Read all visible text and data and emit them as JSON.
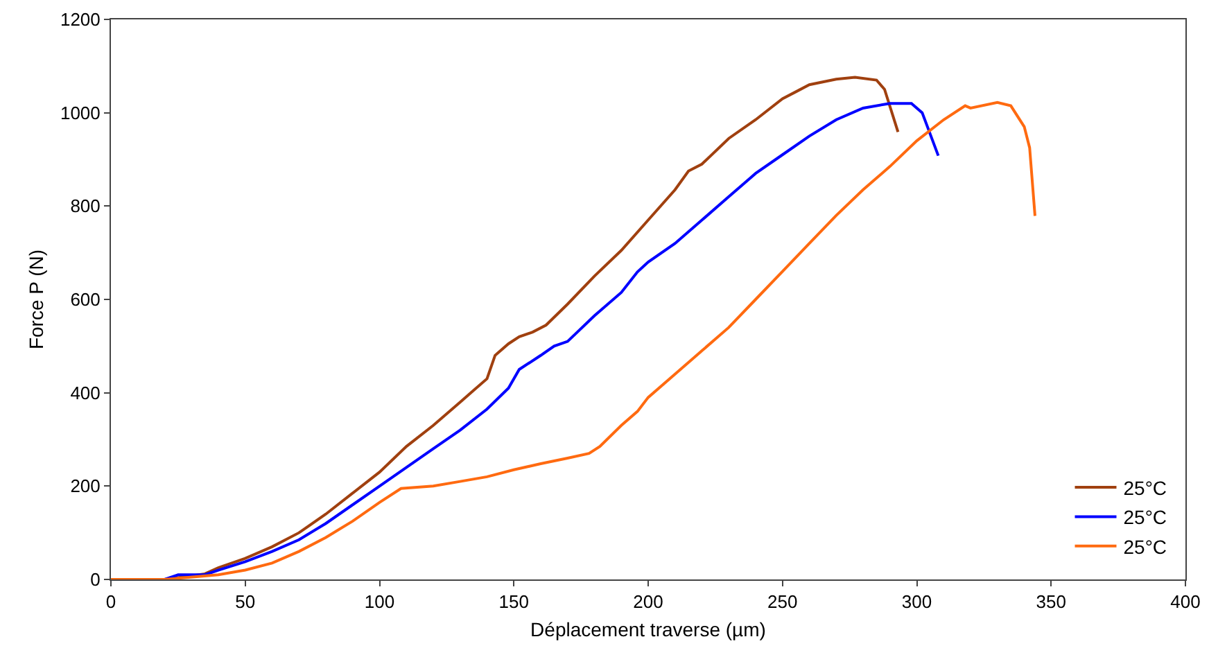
{
  "chart_data": {
    "type": "line",
    "xlabel": "Déplacement traverse (µm)",
    "ylabel": "Force P (N)",
    "xlim": [
      0,
      400
    ],
    "xticks": [
      0,
      50,
      100,
      150,
      200,
      250,
      300,
      350,
      400
    ],
    "ylim": [
      0,
      1200
    ],
    "yticks": [
      0,
      200,
      400,
      600,
      800,
      1000,
      1200
    ],
    "grid": false,
    "legend": "bottom right",
    "marker": "none",
    "line_style": "solid",
    "series": [
      {
        "name": "25°C",
        "color": "#a0400f",
        "x": [
          0,
          20,
          30,
          35,
          40,
          50,
          60,
          70,
          80,
          90,
          100,
          110,
          120,
          130,
          135,
          140,
          143,
          148,
          152,
          157,
          162,
          170,
          180,
          190,
          200,
          210,
          215,
          220,
          230,
          240,
          250,
          255,
          260,
          270,
          277,
          285,
          288,
          293
        ],
        "values": [
          0,
          0,
          8,
          12,
          25,
          45,
          70,
          100,
          140,
          185,
          230,
          285,
          330,
          380,
          405,
          430,
          480,
          505,
          520,
          530,
          545,
          590,
          650,
          705,
          770,
          835,
          875,
          890,
          945,
          985,
          1030,
          1045,
          1060,
          1072,
          1076,
          1070,
          1050,
          959
        ]
      },
      {
        "name": "25°C",
        "color": "#0000ff",
        "x": [
          0,
          20,
          25,
          35,
          40,
          50,
          60,
          70,
          80,
          90,
          100,
          110,
          120,
          130,
          140,
          148,
          152,
          160,
          165,
          170,
          180,
          190,
          196,
          200,
          210,
          220,
          230,
          240,
          250,
          260,
          270,
          280,
          290,
          298,
          302,
          308
        ],
        "values": [
          0,
          0,
          10,
          10,
          20,
          38,
          60,
          85,
          120,
          160,
          200,
          240,
          280,
          320,
          365,
          410,
          450,
          480,
          500,
          510,
          565,
          615,
          659,
          680,
          720,
          770,
          820,
          870,
          910,
          950,
          985,
          1010,
          1020,
          1020,
          1000,
          908
        ]
      },
      {
        "name": "25°C",
        "color": "#ff6a10",
        "x": [
          0,
          20,
          40,
          50,
          60,
          70,
          80,
          90,
          100,
          108,
          120,
          130,
          140,
          150,
          160,
          170,
          178,
          182,
          190,
          196,
          200,
          210,
          220,
          230,
          240,
          250,
          260,
          270,
          280,
          290,
          300,
          310,
          318,
          320,
          330,
          335,
          340,
          342,
          344
        ],
        "values": [
          0,
          0,
          10,
          20,
          35,
          60,
          90,
          125,
          165,
          195,
          200,
          210,
          220,
          235,
          248,
          260,
          270,
          285,
          330,
          360,
          390,
          440,
          490,
          540,
          600,
          660,
          720,
          780,
          835,
          885,
          940,
          985,
          1015,
          1010,
          1022,
          1015,
          970,
          925,
          779
        ]
      }
    ]
  }
}
